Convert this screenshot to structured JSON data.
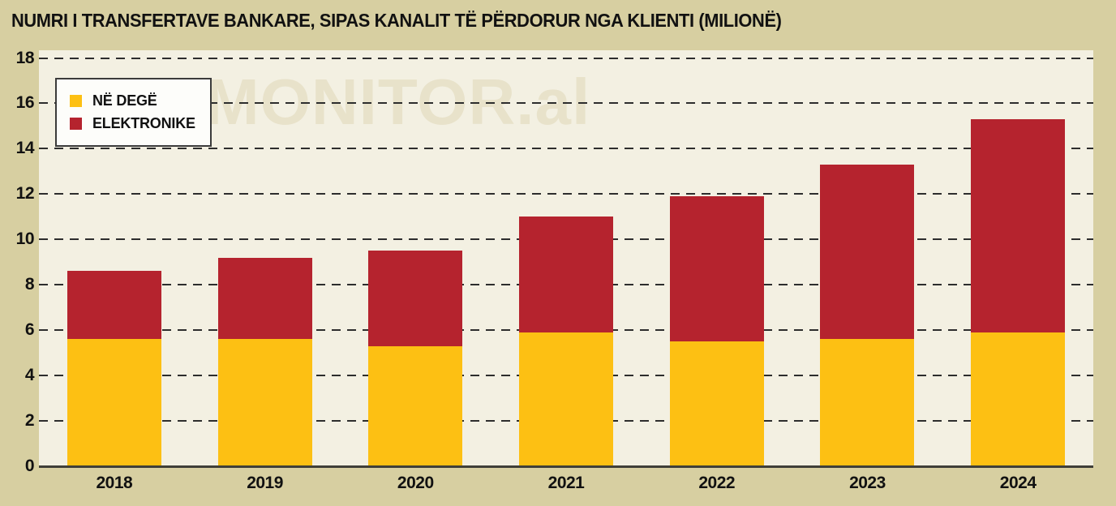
{
  "title": "NUMRI I TRANSFERTAVE BANKARE, SIPAS KANALIT TË PËRDORUR NGA KLIENTI (MILIONË)",
  "watermark": "MONITOR.al",
  "colors": {
    "page_background": "#d7cfa1",
    "plot_background": "#f3f0e2",
    "watermark": "#e8e2ca",
    "grid": "#2d2d2d",
    "axis_line": "#3f3f38",
    "text": "#111111",
    "legend_background": "#fdfdfa",
    "legend_border": "#3b3b3b",
    "series_yellow": "#fdc013",
    "series_red": "#b5232e"
  },
  "chart_data": {
    "type": "bar",
    "stacked": true,
    "title": "NUMRI I TRANSFERTAVE BANKARE, SIPAS KANALIT TË PËRDORUR NGA KLIENTI (MILIONË)",
    "categories": [
      "2018",
      "2019",
      "2020",
      "2021",
      "2022",
      "2023",
      "2024"
    ],
    "series": [
      {
        "name": "NË DEGË",
        "color": "#fdc013",
        "values": [
          5.6,
          5.6,
          5.3,
          5.9,
          5.5,
          5.6,
          5.9
        ]
      },
      {
        "name": "ELEKTRONIKE",
        "color": "#b5232e",
        "values": [
          3.0,
          3.6,
          4.2,
          5.1,
          6.4,
          7.7,
          9.4
        ]
      }
    ],
    "totals": [
      8.6,
      9.2,
      9.5,
      11.0,
      11.9,
      13.3,
      15.3
    ],
    "ylim": [
      0,
      18
    ],
    "yticks": [
      0,
      2,
      4,
      6,
      8,
      10,
      12,
      14,
      16,
      18
    ],
    "xlabel": "",
    "ylabel": "",
    "grid": "horizontal-dashed",
    "legend_position": "top-left"
  }
}
